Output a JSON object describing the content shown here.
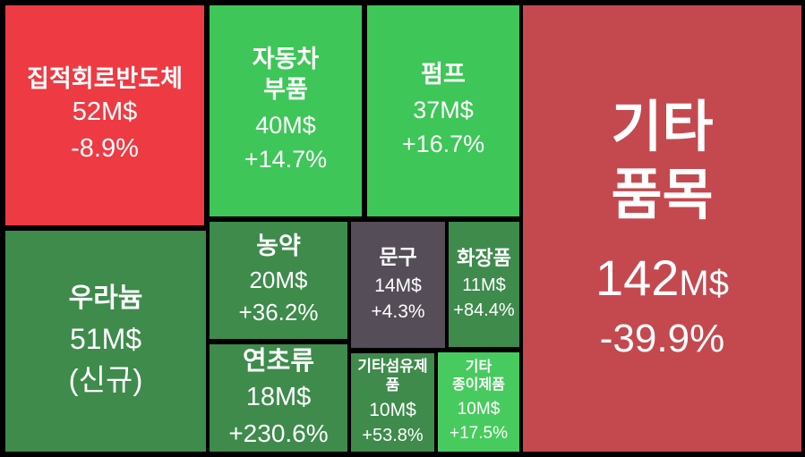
{
  "chart_data": {
    "type": "treemap",
    "title": "",
    "unit": "M$",
    "legend": "none",
    "colors": {
      "background": "#000000",
      "loss_bright_red": "#ee3a42",
      "loss_muted_red": "#c4494f",
      "gain_bright_green": "#3ec658",
      "gain_dark_green": "#3e8b4c",
      "gain_light_green": "#48cb5e",
      "neutral_dark_gray": "#554d58",
      "text": "#ffffff"
    },
    "items": [
      {
        "name": "집적회로반도체",
        "name_lines": [
          "집적회로반도체"
        ],
        "value": 52,
        "value_label": "52M$",
        "change_pct": -8.9,
        "change_label": "-8.9%",
        "color": "#ee3a42"
      },
      {
        "name": "자동차 부품",
        "name_lines": [
          "자동차",
          "부품"
        ],
        "value": 40,
        "value_label": "40M$",
        "change_pct": 14.7,
        "change_label": "+14.7%",
        "color": "#3ec658"
      },
      {
        "name": "펌프",
        "name_lines": [
          "펌프"
        ],
        "value": 37,
        "value_label": "37M$",
        "change_pct": 16.7,
        "change_label": "+16.7%",
        "color": "#3ec658"
      },
      {
        "name": "기타 품목",
        "name_lines": [
          "기타",
          "품목"
        ],
        "value": 142,
        "value_label": "142M$",
        "value_num": "142",
        "value_unit": "M$",
        "change_pct": -39.9,
        "change_label": "-39.9%",
        "color": "#c4494f"
      },
      {
        "name": "우라늄",
        "name_lines": [
          "우라늄"
        ],
        "value": 51,
        "value_label": "51M$",
        "change_pct": null,
        "change_label": "(신규)",
        "color": "#3e8b4c"
      },
      {
        "name": "농약",
        "name_lines": [
          "농약"
        ],
        "value": 20,
        "value_label": "20M$",
        "change_pct": 36.2,
        "change_label": "+36.2%",
        "color": "#3e8b4c"
      },
      {
        "name": "문구",
        "name_lines": [
          "문구"
        ],
        "value": 14,
        "value_label": "14M$",
        "change_pct": 4.3,
        "change_label": "+4.3%",
        "color": "#554d58"
      },
      {
        "name": "화장품",
        "name_lines": [
          "화장품"
        ],
        "value": 11,
        "value_label": "11M$",
        "change_pct": 84.4,
        "change_label": "+84.4%",
        "color": "#3e8b4c"
      },
      {
        "name": "연초류",
        "name_lines": [
          "연초류"
        ],
        "value": 18,
        "value_label": "18M$",
        "change_pct": 230.6,
        "change_label": "+230.6%",
        "color": "#3e8b4c"
      },
      {
        "name": "기타섬유제품",
        "name_lines": [
          "기타섬유제품"
        ],
        "value": 10,
        "value_label": "10M$",
        "change_pct": 53.8,
        "change_label": "+53.8%",
        "color": "#3e8b4c"
      },
      {
        "name": "기타 종이제품",
        "name_lines": [
          "기타",
          "종이제품"
        ],
        "value": 10,
        "value_label": "10M$",
        "change_pct": 17.5,
        "change_label": "+17.5%",
        "color": "#48cb5e"
      }
    ]
  }
}
